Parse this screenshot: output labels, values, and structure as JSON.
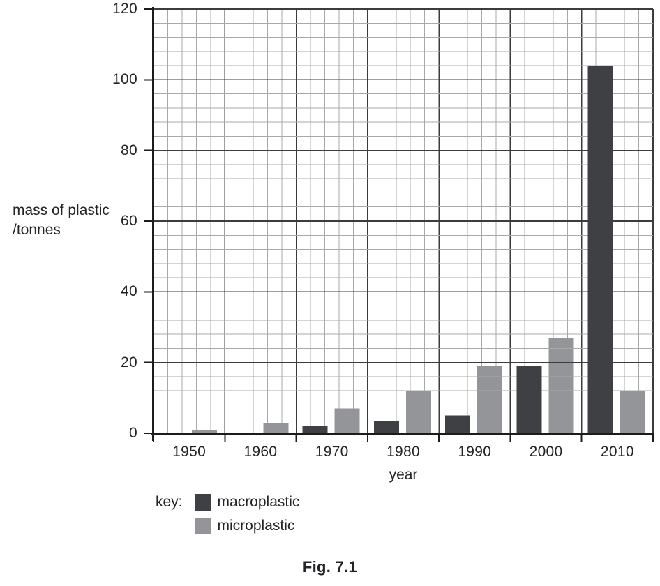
{
  "chart_data": {
    "type": "bar",
    "caption": "Fig. 7.1",
    "xlabel": "year",
    "ylabel_lines": [
      "mass of plastic",
      "/tonnes"
    ],
    "ylim": [
      0,
      120
    ],
    "y_tick_step": 20,
    "y_minor_step": 4,
    "x_minor_divisions_per_category": 5,
    "grid": true,
    "categories": [
      "1950",
      "1960",
      "1970",
      "1980",
      "1990",
      "2000",
      "2010"
    ],
    "series": [
      {
        "name": "macroplastic",
        "color": "#3e4043",
        "values": [
          0,
          0,
          2,
          3.5,
          5,
          19,
          104
        ]
      },
      {
        "name": "microplastic",
        "color": "#939598",
        "values": [
          1,
          3,
          7,
          12,
          19,
          27,
          12
        ]
      }
    ],
    "legend": {
      "title": "key:",
      "position": "below-left"
    },
    "colors": {
      "axis": "#1c1c1e",
      "major_grid": "#3c3c3e",
      "minor_grid": "#a9a9ab",
      "text": "#242428"
    }
  }
}
